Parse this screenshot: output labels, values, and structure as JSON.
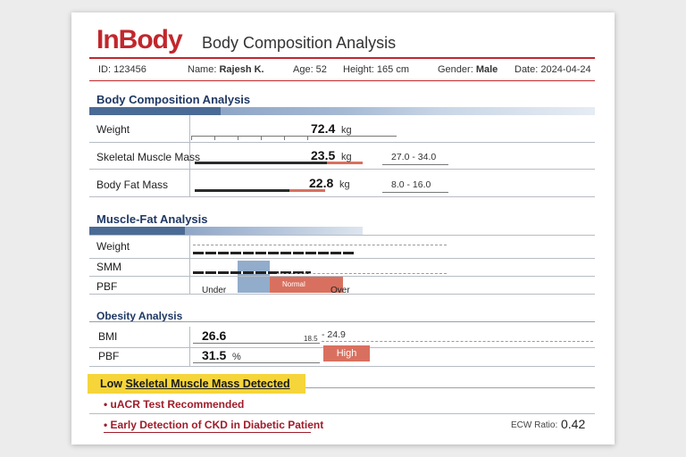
{
  "header": {
    "logo": "InBody",
    "title": "Body Composition Analysis",
    "id_text": "ID: 123456",
    "name_label": "Name:",
    "name_value": "Rajesh K.",
    "age_text": "Age: 52",
    "height_text": "Height: 165 cm",
    "gender_label": "Gender:",
    "gender_value": "Male",
    "date_text": "Date: 2024-04-24"
  },
  "body_composition": {
    "title": "Body Composition Analysis",
    "rows": [
      {
        "label": "Weight",
        "value": "72.4",
        "unit": "kg",
        "range": ""
      },
      {
        "label": "Skeletal Muscle Mass",
        "value": "23.5",
        "unit": "kg",
        "range": "27.0 - 34.0"
      },
      {
        "label": "Body Fat Mass",
        "value": "22.8",
        "unit": "kg",
        "range": "8.0 - 16.0"
      }
    ]
  },
  "muscle_fat": {
    "title": "Muscle-Fat Analysis",
    "rows": [
      "Weight",
      "SMM",
      "PBF"
    ],
    "scale_under": "Under",
    "scale_normal": "Normal",
    "scale_over": "Over"
  },
  "obesity": {
    "title": "Obesity Analysis",
    "bmi_label": "BMI",
    "bmi_value": "26.6",
    "bmi_range_low": "18.5",
    "bmi_range_high": "- 24.9",
    "pbf_label": "PBF",
    "pbf_value": "31.5",
    "pbf_unit": "%",
    "pbf_flag": "High"
  },
  "findings": {
    "headline_prefix": "Low ",
    "headline_underlined": "Skeletal Muscle Mass Detected",
    "items": [
      "uACR Test Recommended",
      "Early Detection of CKD in Diabetic Patient"
    ],
    "ecw_label": "ECW Ratio:",
    "ecw_value": "0.42"
  },
  "colors": {
    "brand": "#c1272d",
    "heading": "#1f3864",
    "flag": "#d9705f",
    "highlight": "#f5d53a"
  }
}
